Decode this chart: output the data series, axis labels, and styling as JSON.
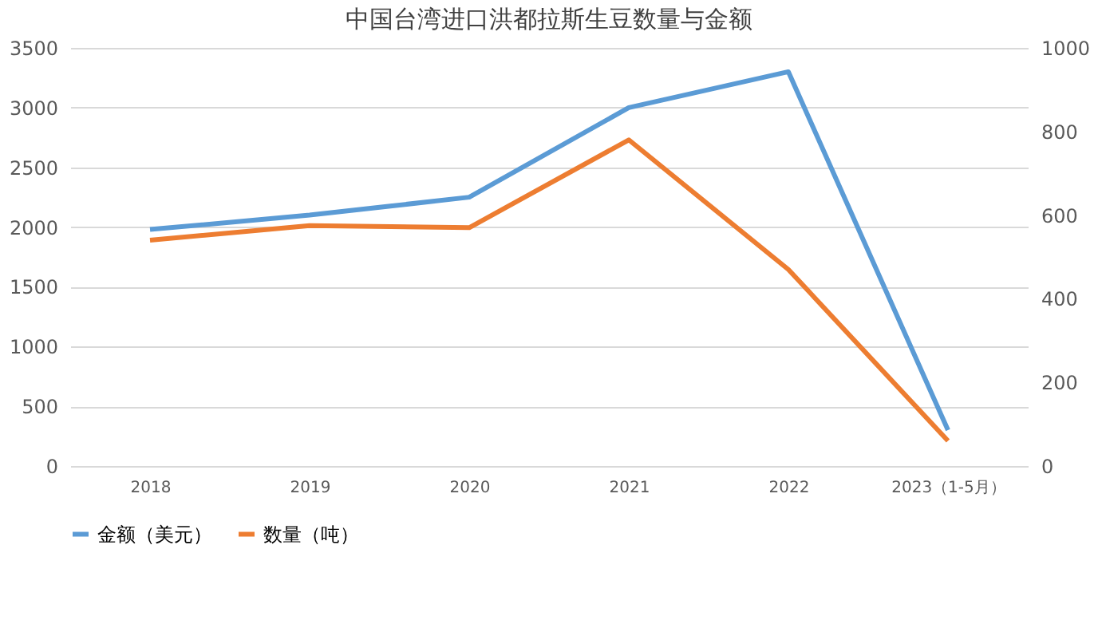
{
  "chart_data": {
    "type": "line",
    "title": "中国台湾进口洪都拉斯生豆数量与金额",
    "categories": [
      "2018",
      "2019",
      "2020",
      "2021",
      "2022",
      "2023（1-5月）"
    ],
    "series": [
      {
        "name": "金额（美元）",
        "color": "#5b9bd5",
        "values": [
          1980,
          2100,
          2250,
          3000,
          3300,
          300
        ]
      },
      {
        "name": "数量（吨）",
        "color": "#ed7d31",
        "axis": "y2",
        "values": [
          540,
          575,
          570,
          780,
          470,
          60
        ]
      }
    ],
    "ylim": [
      0,
      3500
    ],
    "yticks": [
      0,
      500,
      1000,
      1500,
      2000,
      2500,
      3000,
      3500
    ],
    "y2lim": [
      0,
      1000
    ],
    "y2ticks": [
      0,
      200,
      400,
      600,
      800,
      1000
    ],
    "grid": "y",
    "legend": "bottom",
    "marker": "none",
    "line_style": "solid"
  }
}
